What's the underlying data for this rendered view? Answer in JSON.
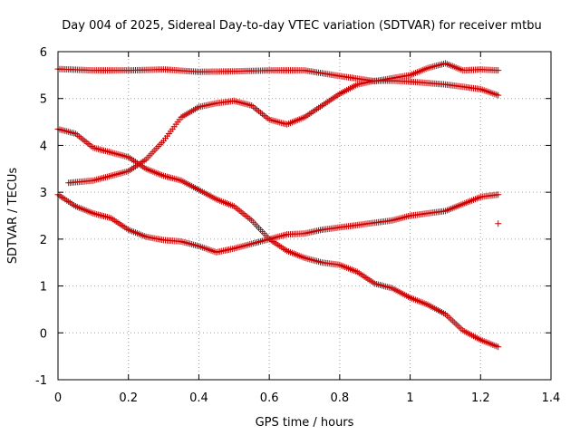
{
  "chart_data": {
    "type": "scatter",
    "title": "Day 004 of 2025, Sidereal Day-to-day VTEC variation (SDTVAR) for receiver mtbu",
    "xlabel": "GPS time / hours",
    "ylabel": "SDTVAR / TECUs",
    "xlim": [
      0,
      1.4
    ],
    "ylim": [
      -1,
      6
    ],
    "xticks": [
      0,
      0.2,
      0.4,
      0.6,
      0.8,
      1,
      1.2,
      1.4
    ],
    "xtick_labels": [
      "0",
      "0.2",
      "0.4",
      "0.6",
      "0.8",
      "1",
      "1.2",
      "1.4"
    ],
    "yticks": [
      -1,
      0,
      1,
      2,
      3,
      4,
      5,
      6
    ],
    "ytick_labels": [
      "-1",
      "0",
      "1",
      "2",
      "3",
      "4",
      "5",
      "6"
    ],
    "grid": true,
    "marker": "+",
    "color": "#cc0000",
    "series": [
      {
        "name": "series-1",
        "x": [
          0,
          0.1,
          0.2,
          0.3,
          0.4,
          0.5,
          0.6,
          0.7,
          0.8,
          0.9,
          1.0,
          1.05,
          1.1,
          1.15,
          1.2,
          1.25
        ],
        "y": [
          5.63,
          5.6,
          5.6,
          5.62,
          5.57,
          5.58,
          5.6,
          5.6,
          5.48,
          5.37,
          5.5,
          5.65,
          5.75,
          5.6,
          5.62,
          5.6
        ]
      },
      {
        "name": "series-2",
        "x": [
          0.03,
          0.1,
          0.2,
          0.25,
          0.3,
          0.35,
          0.4,
          0.45,
          0.5,
          0.55,
          0.6,
          0.65,
          0.7,
          0.75,
          0.8,
          0.85,
          0.9,
          0.95,
          1.0,
          1.05,
          1.1,
          1.15,
          1.2,
          1.25
        ],
        "y": [
          3.2,
          3.25,
          3.45,
          3.7,
          4.1,
          4.6,
          4.82,
          4.9,
          4.95,
          4.85,
          4.55,
          4.45,
          4.6,
          4.85,
          5.1,
          5.3,
          5.38,
          5.38,
          5.36,
          5.33,
          5.3,
          5.25,
          5.2,
          5.07
        ]
      },
      {
        "name": "series-3",
        "x": [
          0,
          0.05,
          0.1,
          0.15,
          0.2,
          0.25,
          0.3,
          0.35,
          0.4,
          0.45,
          0.5,
          0.55,
          0.6,
          0.65,
          0.7,
          0.75,
          0.8,
          0.85,
          0.9,
          0.95,
          1.0,
          1.05,
          1.1,
          1.15,
          1.2,
          1.25
        ],
        "y": [
          4.35,
          4.25,
          3.95,
          3.85,
          3.75,
          3.5,
          3.35,
          3.25,
          3.05,
          2.85,
          2.7,
          2.4,
          2.0,
          1.75,
          1.6,
          1.5,
          1.45,
          1.3,
          1.05,
          0.95,
          0.75,
          0.6,
          0.4,
          0.05,
          -0.15,
          -0.3
        ]
      },
      {
        "name": "series-4",
        "x": [
          0,
          0.05,
          0.1,
          0.15,
          0.2,
          0.25,
          0.3,
          0.35,
          0.4,
          0.45,
          0.5,
          0.55,
          0.6,
          0.65,
          0.7,
          0.75,
          0.8,
          0.85,
          0.9,
          0.95,
          1.0,
          1.05,
          1.1,
          1.15,
          1.2,
          1.25
        ],
        "y": [
          2.95,
          2.7,
          2.55,
          2.45,
          2.2,
          2.05,
          1.98,
          1.95,
          1.85,
          1.72,
          1.8,
          1.9,
          2.0,
          2.1,
          2.12,
          2.2,
          2.25,
          2.3,
          2.35,
          2.4,
          2.5,
          2.55,
          2.6,
          2.75,
          2.9,
          2.95
        ]
      },
      {
        "name": "series-5-outlier",
        "x": [
          1.25
        ],
        "y": [
          2.33
        ]
      }
    ]
  }
}
